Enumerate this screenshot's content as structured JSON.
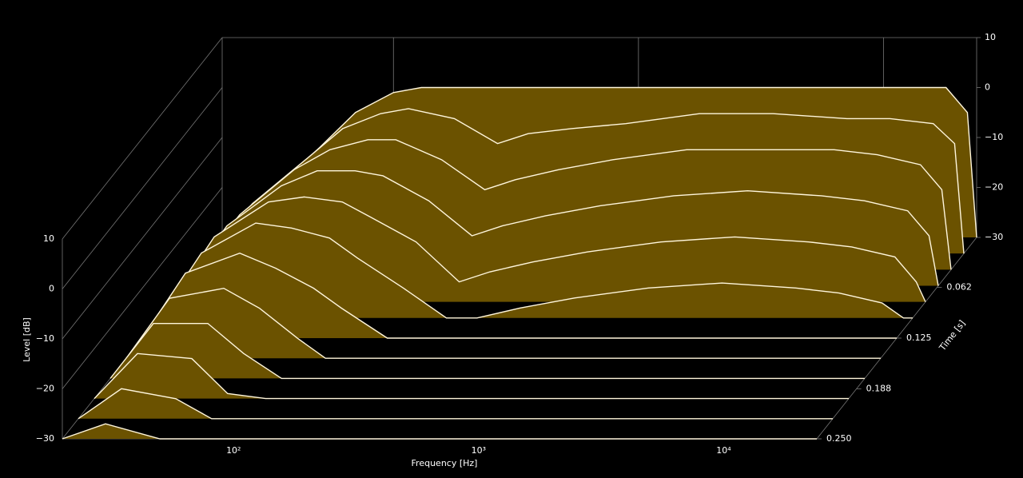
{
  "chart_data": {
    "type": "waterfall",
    "x_label": "Frequency [Hz]",
    "z_label": "Level [dB]",
    "t_label": "Time [s]",
    "xscale": "log",
    "xlim": [
      20,
      24000
    ],
    "xticks": [
      {
        "value": 100,
        "label": "10²"
      },
      {
        "value": 1000,
        "label": "10³"
      },
      {
        "value": 10000,
        "label": "10⁴"
      }
    ],
    "zlim": [
      -30,
      10
    ],
    "zticks": [
      {
        "value": -30,
        "label": "−30"
      },
      {
        "value": -20,
        "label": "−20"
      },
      {
        "value": -10,
        "label": "−10"
      },
      0,
      10
    ],
    "tlim": [
      0,
      0.25
    ],
    "tticks": [
      0.062,
      0.125,
      0.188,
      {
        "value": 0.25,
        "label": "0.250"
      }
    ],
    "fill_color": "#6b5200",
    "line_color": "#fff6dc",
    "x": [
      20,
      30,
      50,
      70,
      100,
      130,
      200,
      300,
      400,
      600,
      1000,
      2000,
      4000,
      8000,
      12000,
      18000,
      22000,
      24000
    ],
    "slices": [
      {
        "time": 0,
        "values": [
          -30,
          -22,
          -12,
          -5,
          -1,
          0,
          0,
          0,
          0,
          0,
          0,
          0,
          0,
          0,
          0,
          0,
          -5,
          -30
        ]
      },
      {
        "time": 0.02,
        "values": [
          -30,
          -20,
          -11,
          -5,
          -2,
          -1,
          -3,
          -8,
          -6,
          -5,
          -4,
          -2,
          -2,
          -3,
          -3,
          -4,
          -8,
          -30
        ]
      },
      {
        "time": 0.04,
        "values": [
          -30,
          -19,
          -10,
          -6,
          -4,
          -4,
          -8,
          -14,
          -12,
          -10,
          -8,
          -6,
          -6,
          -6,
          -7,
          -9,
          -14,
          -30
        ]
      },
      {
        "time": 0.06,
        "values": [
          -30,
          -18,
          -10,
          -7,
          -7,
          -8,
          -13,
          -20,
          -18,
          -16,
          -14,
          -12,
          -11,
          -12,
          -13,
          -15,
          -20,
          -30
        ]
      },
      {
        "time": 0.08,
        "values": [
          -30,
          -17,
          -10,
          -9,
          -10,
          -13,
          -18,
          -26,
          -24,
          -22,
          -20,
          -18,
          -17,
          -18,
          -19,
          -21,
          -26,
          -30
        ]
      },
      {
        "time": 0.1,
        "values": [
          -30,
          -17,
          -11,
          -12,
          -14,
          -18,
          -24,
          -30,
          -30,
          -28,
          -26,
          -24,
          -23,
          -24,
          -25,
          -27,
          -30,
          -30
        ]
      },
      {
        "time": 0.125,
        "values": [
          -30,
          -17,
          -13,
          -16,
          -20,
          -24,
          -30,
          -30,
          -30,
          -30,
          -30,
          -30,
          -30,
          -30,
          -30,
          -30,
          -30,
          -30
        ]
      },
      {
        "time": 0.15,
        "values": [
          -30,
          -18,
          -16,
          -20,
          -26,
          -30,
          -30,
          -30,
          -30,
          -30,
          -30,
          -30,
          -30,
          -30,
          -30,
          -30,
          -30,
          -30
        ]
      },
      {
        "time": 0.175,
        "values": [
          -30,
          -19,
          -19,
          -25,
          -30,
          -30,
          -30,
          -30,
          -30,
          -30,
          -30,
          -30,
          -30,
          -30,
          -30,
          -30,
          -30,
          -30
        ]
      },
      {
        "time": 0.2,
        "values": [
          -30,
          -21,
          -22,
          -29,
          -30,
          -30,
          -30,
          -30,
          -30,
          -30,
          -30,
          -30,
          -30,
          -30,
          -30,
          -30,
          -30,
          -30
        ]
      },
      {
        "time": 0.225,
        "values": [
          -30,
          -24,
          -26,
          -30,
          -30,
          -30,
          -30,
          -30,
          -30,
          -30,
          -30,
          -30,
          -30,
          -30,
          -30,
          -30,
          -30,
          -30
        ]
      },
      {
        "time": 0.25,
        "values": [
          -30,
          -27,
          -30,
          -30,
          -30,
          -30,
          -30,
          -30,
          -30,
          -30,
          -30,
          -30,
          -30,
          -30,
          -30,
          -30,
          -30,
          -30
        ]
      }
    ]
  }
}
